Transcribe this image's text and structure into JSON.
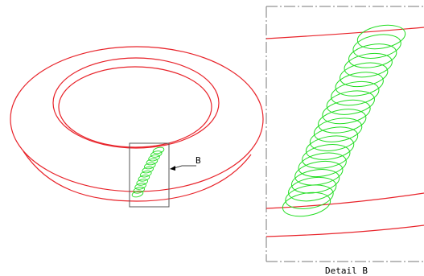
{
  "callout": {
    "label": "B"
  },
  "detail_view": {
    "caption": "Detail B"
  },
  "colors": {
    "ring": "#e8232a",
    "spring": "#22dd22",
    "frame": "#555555",
    "text": "#000000"
  }
}
